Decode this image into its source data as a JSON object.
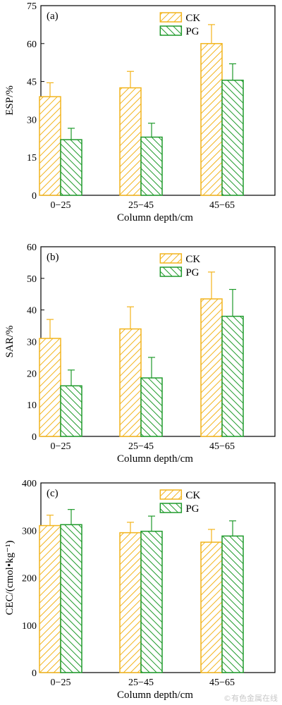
{
  "colors": {
    "CK": "#f2b41c",
    "PG": "#1f9a2b"
  },
  "watermark": "©有色金属在线",
  "chart_data": [
    {
      "type": "bar",
      "panel_label": "(a)",
      "ylabel": "ESP/%",
      "xlabel": "Column depth/cm",
      "categories": [
        "0−25",
        "25−45",
        "45−65"
      ],
      "ylim": [
        0,
        75
      ],
      "yticks": [
        0,
        15,
        30,
        45,
        60,
        75
      ],
      "legend": "top-right",
      "series": [
        {
          "name": "CK",
          "values": [
            39,
            42.5,
            60
          ],
          "errors": [
            5.5,
            6.5,
            7.5
          ]
        },
        {
          "name": "PG",
          "values": [
            22,
            23,
            45.5
          ],
          "errors": [
            4.5,
            5.5,
            6.5
          ]
        }
      ]
    },
    {
      "type": "bar",
      "panel_label": "(b)",
      "ylabel": "SAR/%",
      "xlabel": "Column depth/cm",
      "categories": [
        "0−25",
        "25−45",
        "45−65"
      ],
      "ylim": [
        0,
        60
      ],
      "yticks": [
        0,
        10,
        20,
        30,
        40,
        50,
        60
      ],
      "legend": "top-right",
      "series": [
        {
          "name": "CK",
          "values": [
            31,
            34,
            43.5
          ],
          "errors": [
            6,
            7,
            8.5
          ]
        },
        {
          "name": "PG",
          "values": [
            16,
            18.5,
            38
          ],
          "errors": [
            5,
            6.5,
            8.5
          ]
        }
      ]
    },
    {
      "type": "bar",
      "panel_label": "(c)",
      "ylabel": "CEC/(cmol•kg⁻¹)",
      "xlabel": "Column depth/cm",
      "categories": [
        "0−25",
        "25−45",
        "45−65"
      ],
      "ylim": [
        0,
        400
      ],
      "yticks": [
        0,
        100,
        200,
        300,
        400
      ],
      "legend": "top-right",
      "series": [
        {
          "name": "CK",
          "values": [
            310,
            295,
            275
          ],
          "errors": [
            22,
            22,
            27
          ]
        },
        {
          "name": "PG",
          "values": [
            312,
            298,
            288
          ],
          "errors": [
            32,
            32,
            32
          ]
        }
      ]
    }
  ]
}
